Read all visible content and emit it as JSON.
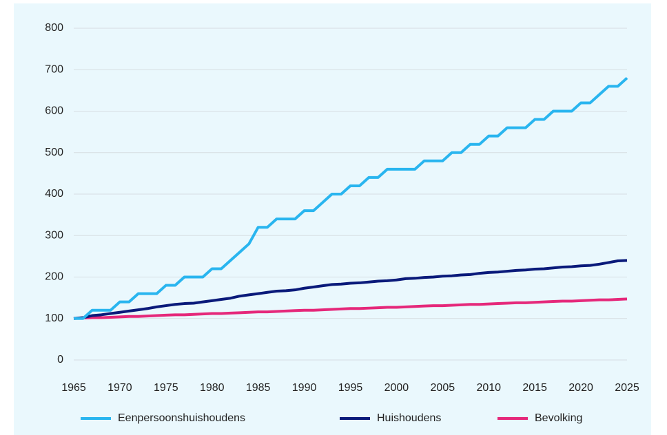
{
  "chart_data": {
    "type": "line",
    "x": [
      1965,
      1966,
      1967,
      1968,
      1969,
      1970,
      1971,
      1972,
      1973,
      1974,
      1975,
      1976,
      1977,
      1978,
      1979,
      1980,
      1981,
      1982,
      1983,
      1984,
      1985,
      1986,
      1987,
      1988,
      1989,
      1990,
      1991,
      1992,
      1993,
      1994,
      1995,
      1996,
      1997,
      1998,
      1999,
      2000,
      2001,
      2002,
      2003,
      2004,
      2005,
      2006,
      2007,
      2008,
      2009,
      2010,
      2011,
      2012,
      2013,
      2014,
      2015,
      2016,
      2017,
      2018,
      2019,
      2020,
      2021,
      2022,
      2023,
      2024,
      2025
    ],
    "series": [
      {
        "name": "Eenpersoonshuishoudens",
        "color": "#29b5ef",
        "values": [
          100,
          100,
          120,
          120,
          120,
          140,
          140,
          160,
          160,
          160,
          180,
          180,
          200,
          200,
          200,
          220,
          220,
          240,
          260,
          280,
          320,
          320,
          340,
          340,
          340,
          360,
          360,
          380,
          400,
          400,
          420,
          420,
          440,
          440,
          460,
          460,
          460,
          460,
          480,
          480,
          480,
          500,
          500,
          520,
          520,
          540,
          540,
          560,
          560,
          560,
          580,
          580,
          600,
          600,
          600,
          620,
          620,
          640,
          660,
          660,
          680
        ]
      },
      {
        "name": "Huishoudens",
        "color": "#0a1a7a",
        "values": [
          100,
          102,
          107,
          109,
          112,
          115,
          118,
          121,
          124,
          128,
          131,
          134,
          136,
          137,
          140,
          143,
          146,
          149,
          154,
          157,
          160,
          163,
          166,
          167,
          169,
          173,
          176,
          179,
          182,
          183,
          185,
          186,
          188,
          190,
          191,
          193,
          196,
          197,
          199,
          200,
          202,
          203,
          205,
          206,
          209,
          211,
          212,
          214,
          216,
          217,
          219,
          220,
          222,
          224,
          225,
          227,
          228,
          231,
          235,
          239,
          240
        ]
      },
      {
        "name": "Bevolking",
        "color": "#e5287a",
        "values": [
          100,
          101,
          102,
          102,
          103,
          104,
          105,
          105,
          106,
          107,
          108,
          109,
          109,
          110,
          111,
          112,
          112,
          113,
          114,
          115,
          116,
          116,
          117,
          118,
          119,
          120,
          120,
          121,
          122,
          123,
          124,
          124,
          125,
          126,
          127,
          127,
          128,
          129,
          130,
          131,
          131,
          132,
          133,
          134,
          134,
          135,
          136,
          137,
          138,
          138,
          139,
          140,
          141,
          142,
          142,
          143,
          144,
          145,
          145,
          146,
          147
        ]
      }
    ],
    "xlim": [
      1965,
      2025
    ],
    "xticks": [
      1965,
      1970,
      1975,
      1980,
      1985,
      1990,
      1995,
      2000,
      2005,
      2010,
      2015,
      2020,
      2025
    ],
    "xtick_label_colors": [
      "#222222",
      "#2a4fb5",
      "#222222",
      "#2a4fb5",
      "#222222",
      "#2a4fb5",
      "#222222",
      "#2a4fb5",
      "#222222",
      "#2a4fb5",
      "#222222",
      "#2a4fb5",
      "#222222"
    ],
    "ylim": [
      0,
      800
    ],
    "yticks": [
      0,
      100,
      200,
      300,
      400,
      500,
      600,
      700,
      800
    ],
    "grid": true,
    "legend": "bottom"
  }
}
